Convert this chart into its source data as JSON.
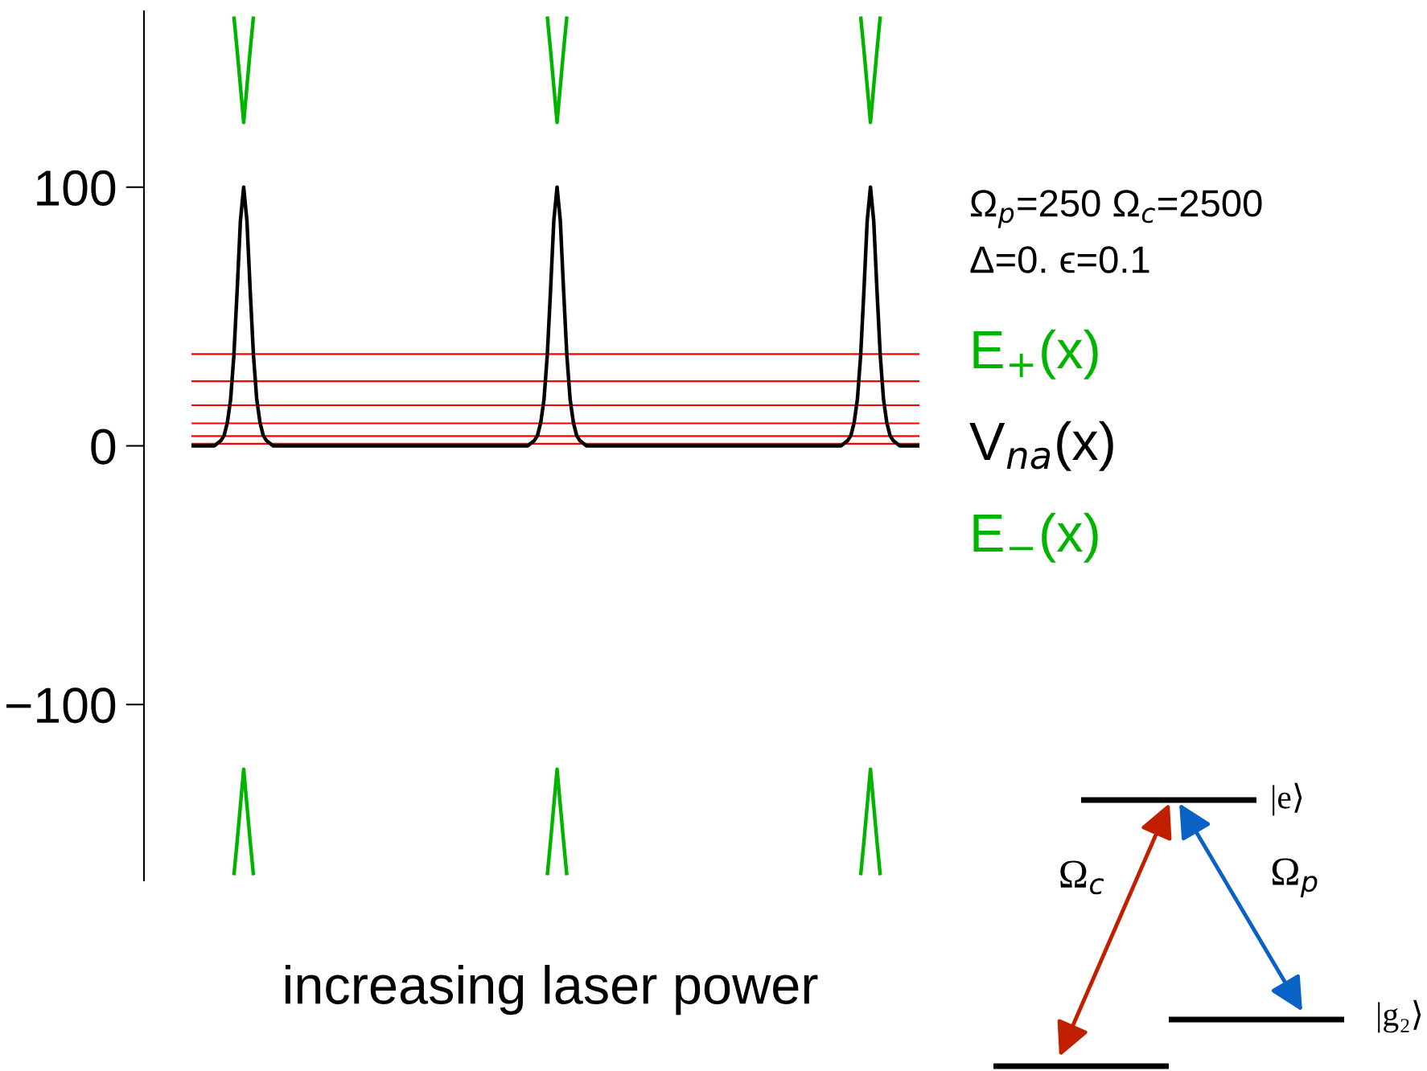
{
  "chart_data": {
    "type": "line",
    "xlabel": "increasing laser power",
    "categories": [
      null,
      null,
      null,
      null,
      null,
      null,
      null,
      null,
      null,
      null,
      null,
      null,
      null,
      null,
      null,
      null,
      null,
      null,
      null,
      null,
      null,
      null,
      null,
      null,
      null,
      null,
      null,
      null,
      null,
      null,
      null,
      null,
      null,
      null,
      null,
      null,
      null,
      null,
      null,
      null,
      null,
      null,
      null,
      null,
      null,
      null,
      null,
      null,
      null,
      null,
      null,
      null,
      null,
      null,
      null,
      null,
      null,
      null,
      null,
      null,
      null,
      null,
      null,
      null,
      null,
      null,
      null,
      null,
      null,
      null,
      null,
      null,
      null,
      null,
      null,
      null,
      null,
      null,
      null,
      null,
      null,
      null,
      null,
      null,
      null,
      null,
      null,
      null,
      null,
      null,
      null,
      null,
      null,
      null,
      null,
      null,
      null,
      null,
      null,
      null,
      null,
      null,
      null,
      null,
      null,
      null,
      null,
      null,
      null,
      null,
      null,
      null,
      null,
      null,
      null,
      null,
      null,
      null,
      null,
      null,
      null,
      null,
      null,
      null,
      null,
      null,
      null,
      null,
      null,
      null,
      null,
      null,
      null,
      null,
      null,
      null,
      null,
      null,
      null,
      null,
      null,
      null,
      null,
      null,
      null,
      null,
      null,
      null,
      null,
      null,
      null,
      null,
      null,
      null,
      null,
      null,
      null,
      null,
      null,
      null,
      null,
      null,
      null,
      null,
      null,
      null,
      null,
      null,
      null,
      null,
      null,
      null,
      null,
      null,
      null,
      null,
      null,
      null,
      null,
      null,
      null,
      null,
      null,
      null,
      null,
      null,
      null,
      null,
      null,
      null,
      null,
      null,
      null,
      null,
      null,
      null,
      null,
      null,
      null,
      null,
      null,
      null,
      null,
      null,
      null,
      null,
      null,
      null,
      null,
      null,
      null,
      null,
      null,
      null,
      null,
      null,
      null,
      null,
      null,
      null,
      null,
      null,
      null,
      null
    ],
    "series": [
      {
        "name": "E$_{+}$(x)",
        "color": "#00b400",
        "values": [
          null,
          null,
          null,
          null,
          null,
          null,
          null,
          null,
          null,
          null,
          null,
          null,
          null,
          166,
          153,
          139,
          125,
          139,
          153,
          166,
          null,
          null,
          null,
          null,
          null,
          null,
          null,
          null,
          null,
          null,
          null,
          null,
          null,
          null,
          null,
          null,
          null,
          null,
          null,
          null,
          null,
          null,
          null,
          null,
          null,
          null,
          null,
          null,
          null,
          null,
          null,
          null,
          null,
          null,
          null,
          null,
          null,
          null,
          null,
          null,
          null,
          null,
          null,
          null,
          null,
          null,
          null,
          null,
          null,
          null,
          null,
          null,
          null,
          null,
          null,
          null,
          null,
          null,
          null,
          null,
          null,
          null,
          null,
          null,
          null,
          null,
          null,
          null,
          null,
          null,
          null,
          null,
          null,
          null,
          null,
          null,
          null,
          null,
          null,
          null,
          null,
          null,
          null,
          null,
          null,
          null,
          null,
          null,
          null,
          166,
          153,
          139,
          125,
          139,
          153,
          166,
          null,
          null,
          null,
          null,
          null,
          null,
          null,
          null,
          null,
          null,
          null,
          null,
          null,
          null,
          null,
          null,
          null,
          null,
          null,
          null,
          null,
          null,
          null,
          null,
          null,
          null,
          null,
          null,
          null,
          null,
          null,
          null,
          null,
          null,
          null,
          null,
          null,
          null,
          null,
          null,
          null,
          null,
          null,
          null,
          null,
          null,
          null,
          null,
          null,
          null,
          null,
          null,
          null,
          null,
          null,
          null,
          null,
          null,
          null,
          null,
          null,
          null,
          null,
          null,
          null,
          null,
          null,
          null,
          null,
          null,
          null,
          null,
          null,
          null,
          null,
          null,
          null,
          null,
          null,
          null,
          null,
          null,
          null,
          null,
          null,
          null,
          null,
          null,
          null,
          166,
          153,
          139,
          125,
          139,
          153,
          166,
          null,
          null,
          null,
          null,
          null,
          null,
          null,
          null,
          null,
          null,
          null,
          null
        ]
      },
      {
        "name": "V$_{na}$(x)",
        "color": "#000000",
        "values": [
          0,
          0,
          0,
          0,
          0,
          0,
          0,
          0,
          1,
          2,
          4,
          9,
          18,
          35,
          60,
          87,
          100,
          87,
          60,
          35,
          18,
          9,
          4,
          2,
          1,
          0,
          0,
          0,
          0,
          0,
          0,
          0,
          0,
          0,
          0,
          0,
          0,
          0,
          0,
          0,
          0,
          0,
          0,
          0,
          0,
          0,
          0,
          0,
          0,
          0,
          0,
          0,
          0,
          0,
          0,
          0,
          0,
          0,
          0,
          0,
          0,
          0,
          0,
          0,
          0,
          0,
          0,
          0,
          0,
          0,
          0,
          0,
          0,
          0,
          0,
          0,
          0,
          0,
          0,
          0,
          0,
          0,
          0,
          0,
          0,
          0,
          0,
          0,
          0,
          0,
          0,
          0,
          0,
          0,
          0,
          0,
          0,
          0,
          0,
          0,
          0,
          0,
          0,
          0,
          1,
          2,
          4,
          9,
          18,
          35,
          60,
          87,
          100,
          87,
          60,
          35,
          18,
          9,
          4,
          2,
          1,
          0,
          0,
          0,
          0,
          0,
          0,
          0,
          0,
          0,
          0,
          0,
          0,
          0,
          0,
          0,
          0,
          0,
          0,
          0,
          0,
          0,
          0,
          0,
          0,
          0,
          0,
          0,
          0,
          0,
          0,
          0,
          0,
          0,
          0,
          0,
          0,
          0,
          0,
          0,
          0,
          0,
          0,
          0,
          0,
          0,
          0,
          0,
          0,
          0,
          0,
          0,
          0,
          0,
          0,
          0,
          0,
          0,
          0,
          0,
          0,
          0,
          0,
          0,
          0,
          0,
          0,
          0,
          0,
          0,
          0,
          0,
          0,
          0,
          0,
          0,
          0,
          0,
          0,
          0,
          1,
          2,
          4,
          9,
          18,
          35,
          60,
          87,
          100,
          87,
          60,
          35,
          18,
          9,
          4,
          2,
          1,
          0,
          0,
          0,
          0,
          0,
          0,
          0
        ]
      },
      {
        "name": "E$_{−}$(x)",
        "color": "#00b400",
        "values": [
          null,
          null,
          null,
          null,
          null,
          null,
          null,
          null,
          null,
          null,
          null,
          null,
          null,
          -166,
          -153,
          -139,
          -125,
          -139,
          -153,
          -166,
          null,
          null,
          null,
          null,
          null,
          null,
          null,
          null,
          null,
          null,
          null,
          null,
          null,
          null,
          null,
          null,
          null,
          null,
          null,
          null,
          null,
          null,
          null,
          null,
          null,
          null,
          null,
          null,
          null,
          null,
          null,
          null,
          null,
          null,
          null,
          null,
          null,
          null,
          null,
          null,
          null,
          null,
          null,
          null,
          null,
          null,
          null,
          null,
          null,
          null,
          null,
          null,
          null,
          null,
          null,
          null,
          null,
          null,
          null,
          null,
          null,
          null,
          null,
          null,
          null,
          null,
          null,
          null,
          null,
          null,
          null,
          null,
          null,
          null,
          null,
          null,
          null,
          null,
          null,
          null,
          null,
          null,
          null,
          null,
          null,
          null,
          null,
          null,
          null,
          -166,
          -153,
          -139,
          -125,
          -139,
          -153,
          -166,
          null,
          null,
          null,
          null,
          null,
          null,
          null,
          null,
          null,
          null,
          null,
          null,
          null,
          null,
          null,
          null,
          null,
          null,
          null,
          null,
          null,
          null,
          null,
          null,
          null,
          null,
          null,
          null,
          null,
          null,
          null,
          null,
          null,
          null,
          null,
          null,
          null,
          null,
          null,
          null,
          null,
          null,
          null,
          null,
          null,
          null,
          null,
          null,
          null,
          null,
          null,
          null,
          null,
          null,
          null,
          null,
          null,
          null,
          null,
          null,
          null,
          null,
          null,
          null,
          null,
          null,
          null,
          null,
          null,
          null,
          null,
          null,
          null,
          null,
          null,
          null,
          null,
          null,
          null,
          null,
          null,
          null,
          null,
          null,
          null,
          null,
          null,
          null,
          null,
          -166,
          -153,
          -139,
          -125,
          -139,
          -153,
          -166,
          null,
          null,
          null,
          null,
          null,
          null,
          null,
          null,
          null,
          null,
          null,
          null
        ]
      }
    ],
    "ylim": [
      -168,
      168
    ],
    "yticks": [
      {
        "value": -100,
        "label": "−100"
      },
      0,
      100
    ],
    "tick_labels": "y",
    "ref_lines": [
      {
        "axis": "y",
        "value": 35.5,
        "color": "#ff0000"
      },
      {
        "axis": "y",
        "value": 25,
        "color": "#ff0000"
      },
      {
        "axis": "y",
        "value": 15.7,
        "color": "#ff0000"
      },
      {
        "axis": "y",
        "value": 8.7,
        "color": "#ff0000"
      },
      {
        "axis": "y",
        "value": 3.8,
        "color": "#ff0000"
      },
      {
        "axis": "y",
        "value": 0.8,
        "color": "#ff0000"
      }
    ],
    "annotations": [
      "Ω$_{p}$=250 Ω$_{c}$=2500",
      "Δ=0. ϵ=0.1",
      "Ω$_{c}$",
      "Ω$_{p}$",
      "|e⟩",
      "|g₂⟩"
    ]
  }
}
